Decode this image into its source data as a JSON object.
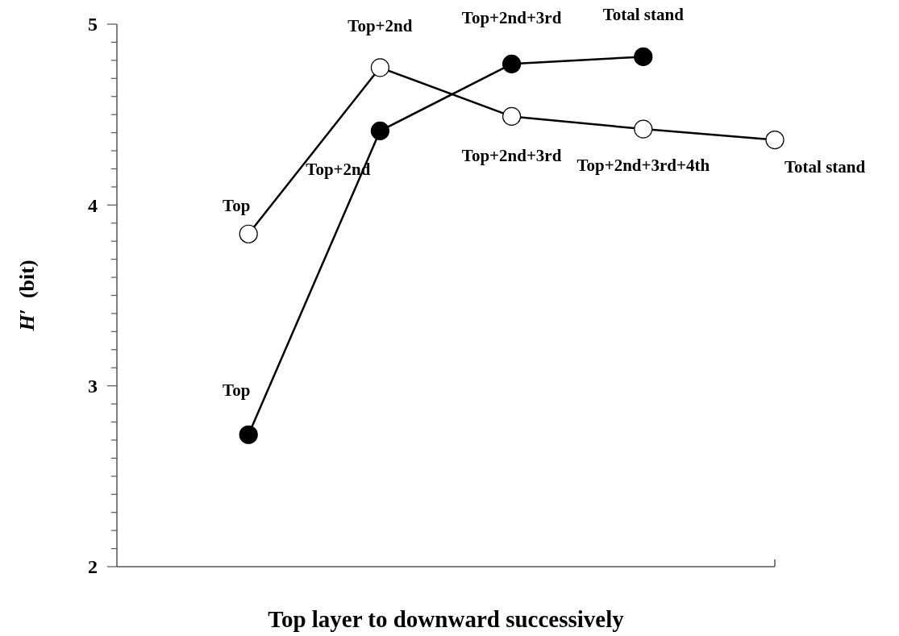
{
  "chart_data": {
    "type": "line",
    "xlabel": "Top layer to downward successively",
    "ylabel": "H′  (bit)",
    "categories": [
      null,
      null,
      null,
      null,
      null
    ],
    "ylim": [
      2,
      5
    ],
    "yticks": [
      2,
      {
        "value": 2.1,
        "label": null
      },
      {
        "value": 2.2,
        "label": null
      },
      {
        "value": 2.3,
        "label": null
      },
      {
        "value": 2.4,
        "label": null
      },
      {
        "value": 2.5,
        "label": null
      },
      {
        "value": 2.6,
        "label": null
      },
      {
        "value": 2.7,
        "label": null
      },
      {
        "value": 2.8,
        "label": null
      },
      {
        "value": 2.9,
        "label": null
      },
      3,
      {
        "value": 3.1,
        "label": null
      },
      {
        "value": 3.2,
        "label": null
      },
      {
        "value": 3.3,
        "label": null
      },
      {
        "value": 3.4,
        "label": null
      },
      {
        "value": 3.5,
        "label": null
      },
      {
        "value": 3.6,
        "label": null
      },
      {
        "value": 3.7,
        "label": null
      },
      {
        "value": 3.8,
        "label": null
      },
      {
        "value": 3.9,
        "label": null
      },
      4,
      {
        "value": 4.1,
        "label": null
      },
      {
        "value": 4.2,
        "label": null
      },
      {
        "value": 4.3,
        "label": null
      },
      {
        "value": 4.4,
        "label": null
      },
      {
        "value": 4.5,
        "label": null
      },
      {
        "value": 4.6,
        "label": null
      },
      {
        "value": 4.7,
        "label": null
      },
      {
        "value": 4.8,
        "label": null
      },
      {
        "value": 4.9,
        "label": null
      },
      5
    ],
    "marker": "circle",
    "grid": false,
    "series": [
      {
        "color": "#ffffff",
        "values": [
          3.84,
          4.76,
          4.49,
          4.42,
          4.36
        ],
        "value_labels": [
          "Top",
          "Top+2nd",
          "Top+2nd+3rd",
          "Top+2nd+3rd+4th",
          "Total stand"
        ]
      },
      {
        "color": "#000000",
        "values": [
          2.73,
          4.41,
          4.78,
          4.82,
          null
        ],
        "value_labels": [
          "Top",
          "Top+2nd",
          "Top+2nd+3rd",
          "Total stand",
          null
        ]
      }
    ]
  }
}
